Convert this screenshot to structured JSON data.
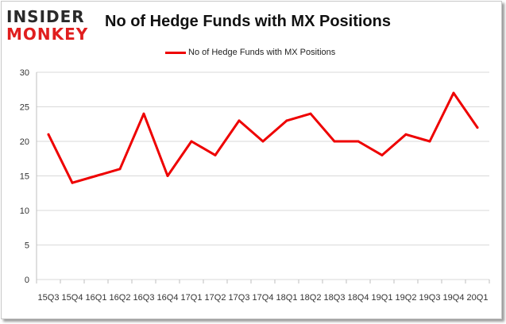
{
  "logo": {
    "line1": "INSIDER",
    "line2": "MONKEY"
  },
  "chart_data": {
    "type": "line",
    "title": "No of Hedge Funds with MX Positions",
    "xlabel": "",
    "ylabel": "",
    "ylim": [
      0,
      30
    ],
    "yticks": [
      "0",
      "5",
      "10",
      "15",
      "20",
      "25",
      "30"
    ],
    "grid": true,
    "legend_position": "top-center",
    "categories": [
      "15Q3",
      "15Q4",
      "16Q1",
      "16Q2",
      "16Q3",
      "16Q4",
      "17Q1",
      "17Q2",
      "17Q3",
      "17Q4",
      "18Q1",
      "18Q2",
      "18Q3",
      "18Q4",
      "19Q1",
      "19Q2",
      "19Q3",
      "19Q4",
      "20Q1"
    ],
    "series": [
      {
        "name": "No of Hedge Funds with MX Positions",
        "color": "#ee0000",
        "values": [
          21,
          14,
          15,
          16,
          24,
          15,
          20,
          18,
          23,
          20,
          23,
          24,
          20,
          20,
          18,
          21,
          20,
          27,
          22
        ]
      }
    ]
  }
}
